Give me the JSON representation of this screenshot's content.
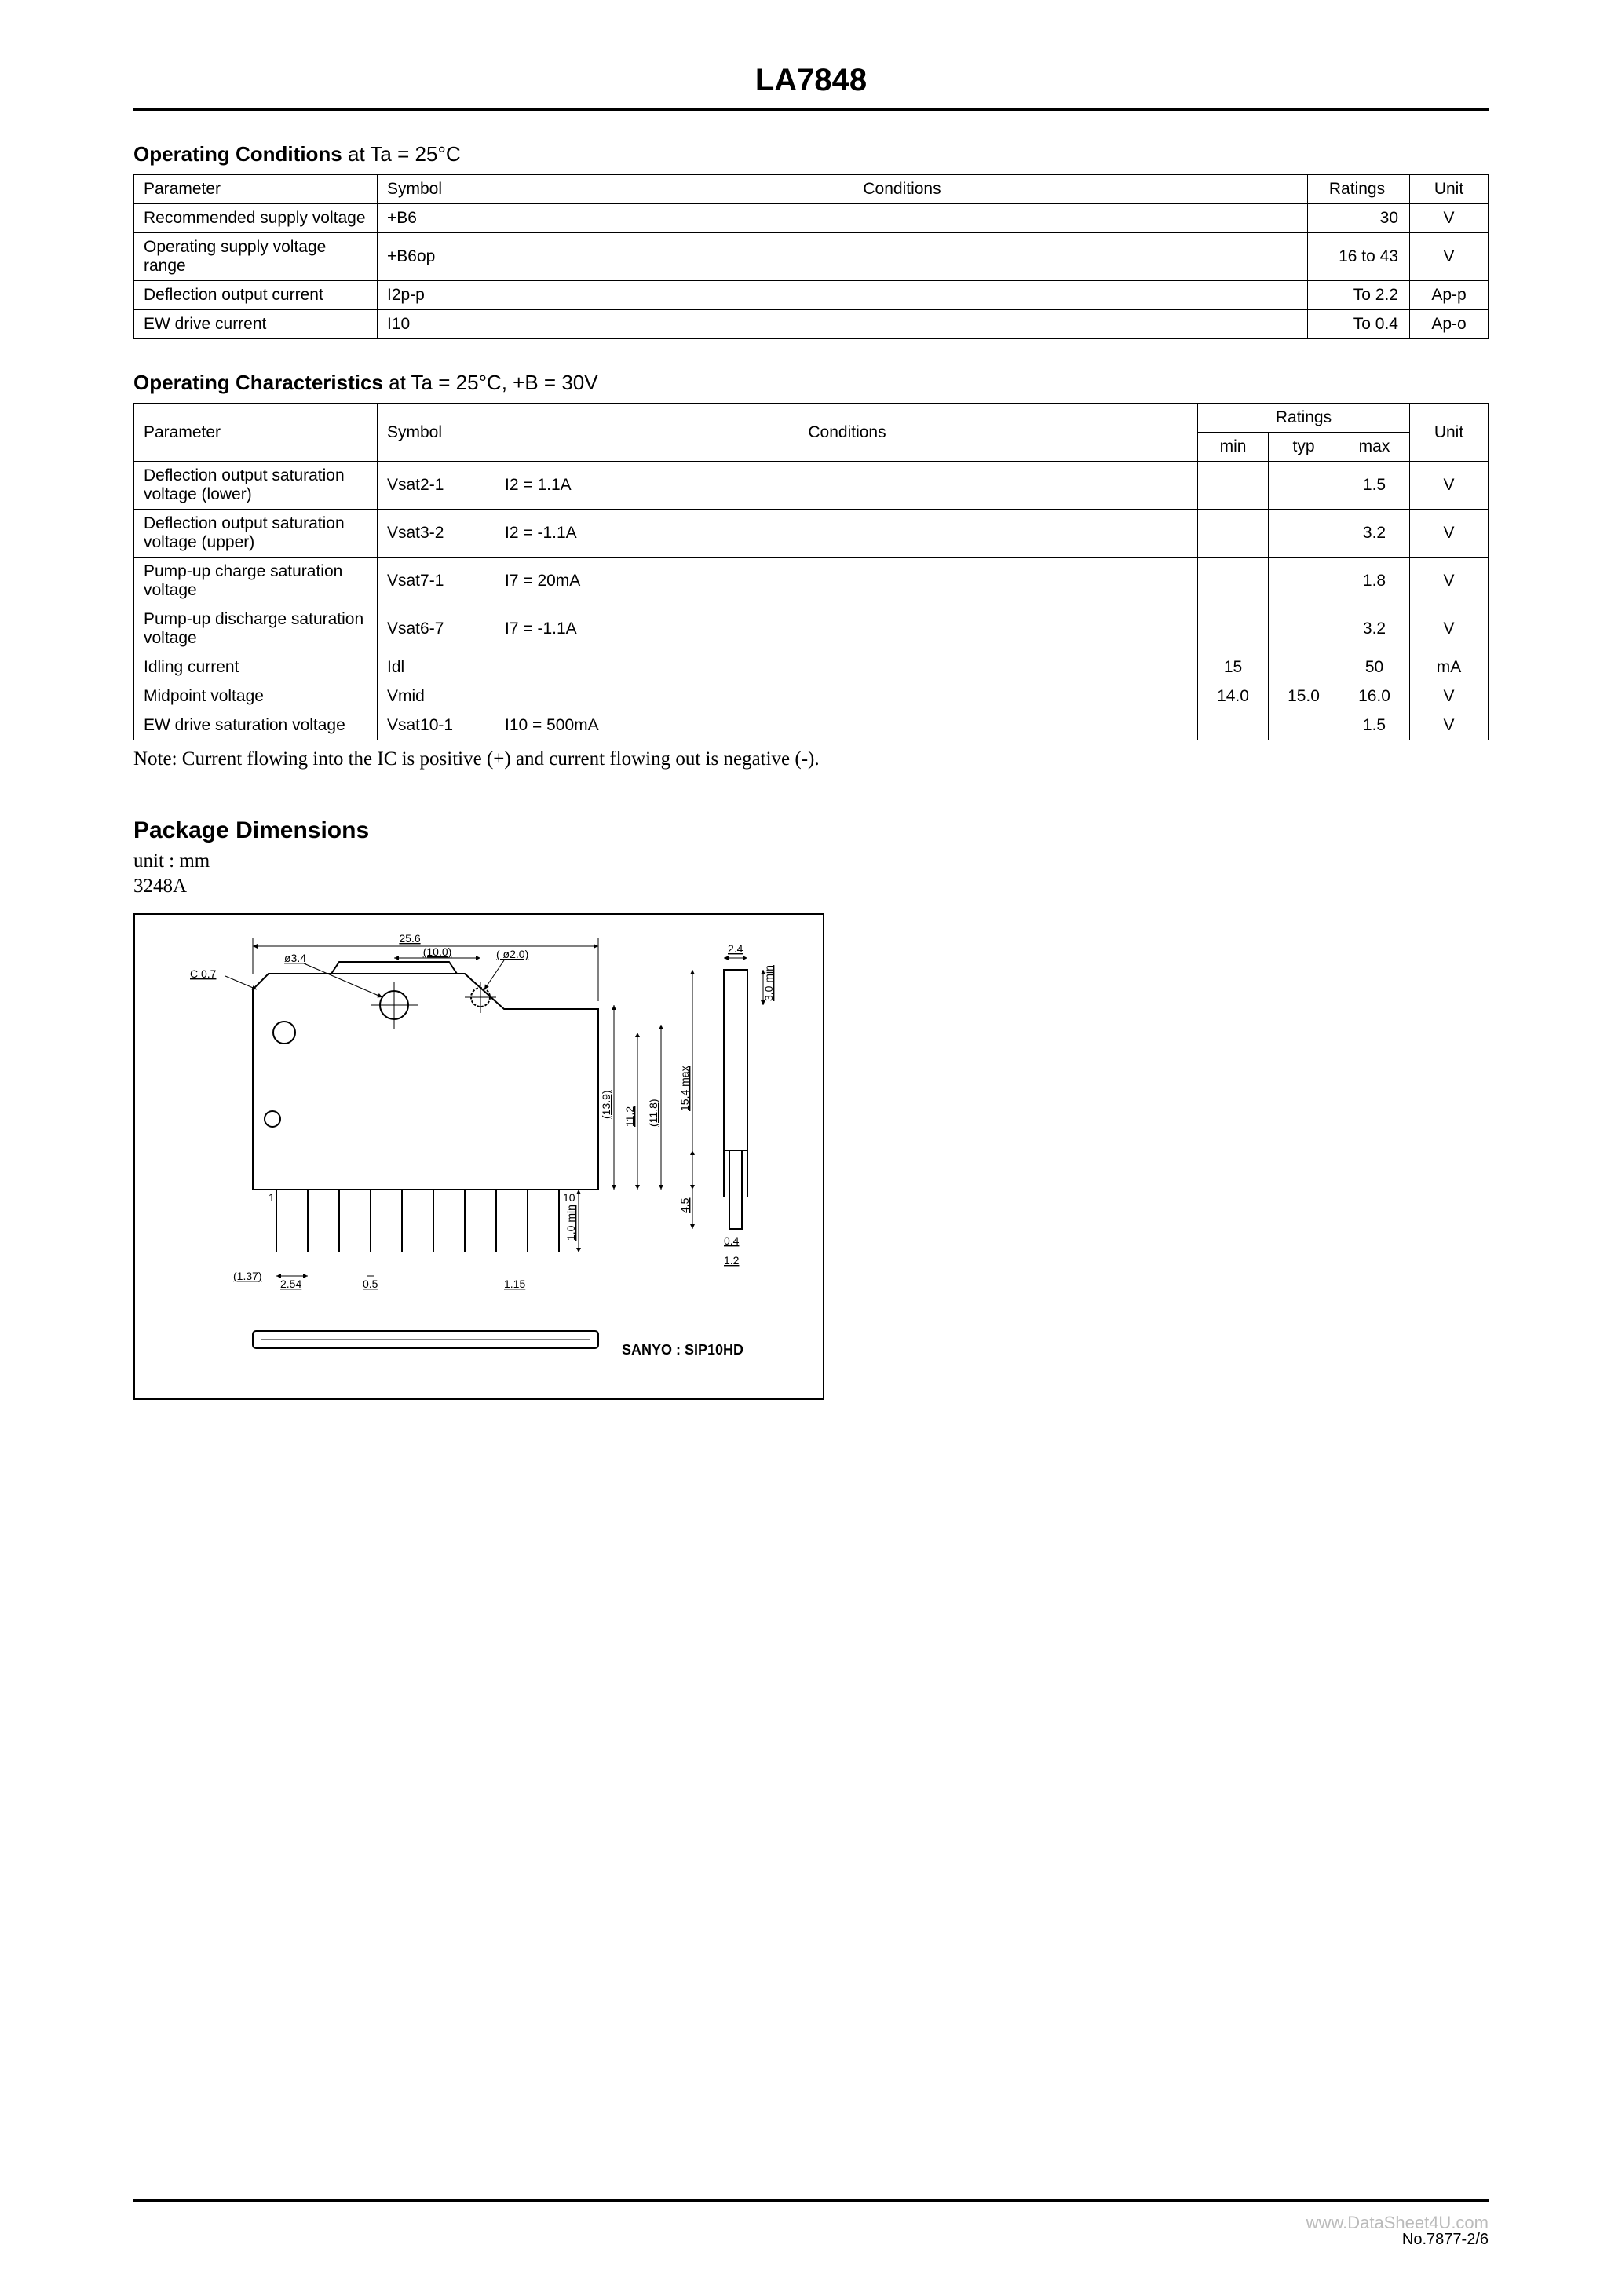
{
  "header": {
    "title": "LA7848"
  },
  "sections": {
    "operating_conditions": {
      "heading_bold": "Operating Conditions",
      "heading_normal": " at Ta = 25°C",
      "columns": [
        "Parameter",
        "Symbol",
        "Conditions",
        "Ratings",
        "Unit"
      ],
      "rows": [
        {
          "param": "Recommended supply voltage",
          "symbol": "+B6",
          "cond": "",
          "rating": "30",
          "unit": "V"
        },
        {
          "param": "Operating supply voltage range",
          "symbol": "+B6op",
          "cond": "",
          "rating": "16 to 43",
          "unit": "V"
        },
        {
          "param": "Deflection output current",
          "symbol": "I2p-p",
          "cond": "",
          "rating": "To 2.2",
          "unit": "Ap-p"
        },
        {
          "param": "EW drive current",
          "symbol": "I10",
          "cond": "",
          "rating": "To 0.4",
          "unit": "Ap-o"
        }
      ]
    },
    "operating_characteristics": {
      "heading_bold": "Operating Characteristics",
      "heading_normal": " at Ta = 25°C, +B = 30V",
      "columns": [
        "Parameter",
        "Symbol",
        "Conditions",
        "Ratings",
        "Unit"
      ],
      "sub_ratings": [
        "min",
        "typ",
        "max"
      ],
      "rows": [
        {
          "param": "Deflection output saturation voltage (lower)",
          "symbol": "Vsat2-1",
          "cond": "I2 = 1.1A",
          "min": "",
          "typ": "",
          "max": "1.5",
          "unit": "V"
        },
        {
          "param": "Deflection output saturation voltage (upper)",
          "symbol": "Vsat3-2",
          "cond": "I2 = -1.1A",
          "min": "",
          "typ": "",
          "max": "3.2",
          "unit": "V"
        },
        {
          "param": "Pump-up charge saturation voltage",
          "symbol": "Vsat7-1",
          "cond": "I7 = 20mA",
          "min": "",
          "typ": "",
          "max": "1.8",
          "unit": "V"
        },
        {
          "param": "Pump-up discharge saturation voltage",
          "symbol": "Vsat6-7",
          "cond": "I7 = -1.1A",
          "min": "",
          "typ": "",
          "max": "3.2",
          "unit": "V"
        },
        {
          "param": "Idling current",
          "symbol": "Idl",
          "cond": "",
          "min": "15",
          "typ": "",
          "max": "50",
          "unit": "mA"
        },
        {
          "param": "Midpoint voltage",
          "symbol": "Vmid",
          "cond": "",
          "min": "14.0",
          "typ": "15.0",
          "max": "16.0",
          "unit": "V"
        },
        {
          "param": "EW drive saturation voltage",
          "symbol": "Vsat10-1",
          "cond": "I10 = 500mA",
          "min": "",
          "typ": "",
          "max": "1.5",
          "unit": "V"
        }
      ]
    },
    "note": "Note: Current flowing into the IC is positive (+) and current flowing out is negative (-).",
    "package": {
      "title": "Package Dimensions",
      "unit_label": "unit : mm",
      "code": "3248A",
      "brand_label": "SANYO : SIP10HD",
      "dims": {
        "c": "C 0.7",
        "hole": "ø3.4",
        "w_paren": "(10.0)",
        "hole2": "( ø2.0)",
        "w_total": "25.6",
        "w_tab": "2.4",
        "h_min": "3.0 min",
        "h1": "(13.9)",
        "h2": "11.2",
        "h3": "(11.8)",
        "h4": "15.4 max",
        "h5": "4.5",
        "pin_h": "1.0 min",
        "pitch_l": "(1.37)",
        "pitch": "2.54",
        "pin_w": "0.5",
        "pin_w2": "1.15",
        "side_t": "0.4",
        "side_w": "1.2",
        "pin1": "1",
        "pin10": "10"
      }
    }
  },
  "footer": {
    "watermark": "www.DataSheet4U.com",
    "pageno": "No.7877-2/6"
  },
  "style": {
    "page_bg": "#ffffff",
    "text_color": "#000000",
    "border_color": "#000000",
    "watermark_color": "#bbbbbb"
  }
}
